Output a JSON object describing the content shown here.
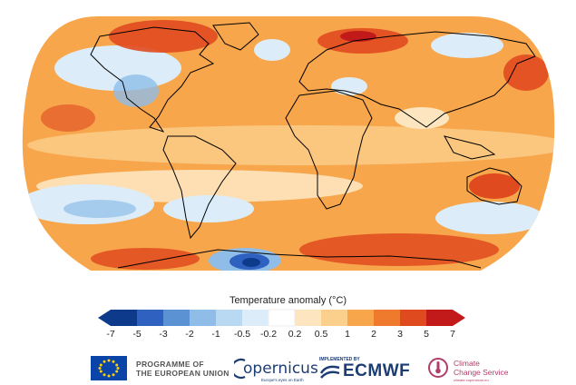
{
  "legend": {
    "title": "Temperature anomaly (°C)",
    "ticks": [
      "-7",
      "-5",
      "-3",
      "-2",
      "-1",
      "-0.5",
      "-0.2",
      "0.2",
      "0.5",
      "1",
      "2",
      "3",
      "5",
      "7"
    ],
    "colors": [
      "#0d3a8a",
      "#2e61c0",
      "#5b92d4",
      "#8fbde8",
      "#b9d8f2",
      "#dcedf9",
      "#ffffff",
      "#fde6bf",
      "#fbcf8c",
      "#f7a64c",
      "#ef7a2e",
      "#e04a1f",
      "#c21a1a"
    ]
  },
  "map_colors": {
    "warm_base": "#f7a64c",
    "warm_light": "#fbcf8c",
    "warm_pale": "#fde6bf",
    "hot": "#e04a1f",
    "very_hot": "#c21a1a",
    "cool_pale": "#dcedf9",
    "cool": "#8fbde8",
    "cold": "#2e61c0",
    "very_cold": "#0d3a8a",
    "coastline": "#000000"
  },
  "footer": {
    "eu_line1": "PROGRAMME OF",
    "eu_line2": "THE EUROPEAN UNION",
    "copernicus": "opernicus",
    "copernicus_tagline": "Europe's eyes on Earth",
    "ecmwf_small": "IMPLEMENTED BY",
    "ecmwf": "ECMWF",
    "ccs_line1": "Climate",
    "ccs_line2": "Change Service",
    "ccs_tagline": "climate.copernicus.eu"
  }
}
